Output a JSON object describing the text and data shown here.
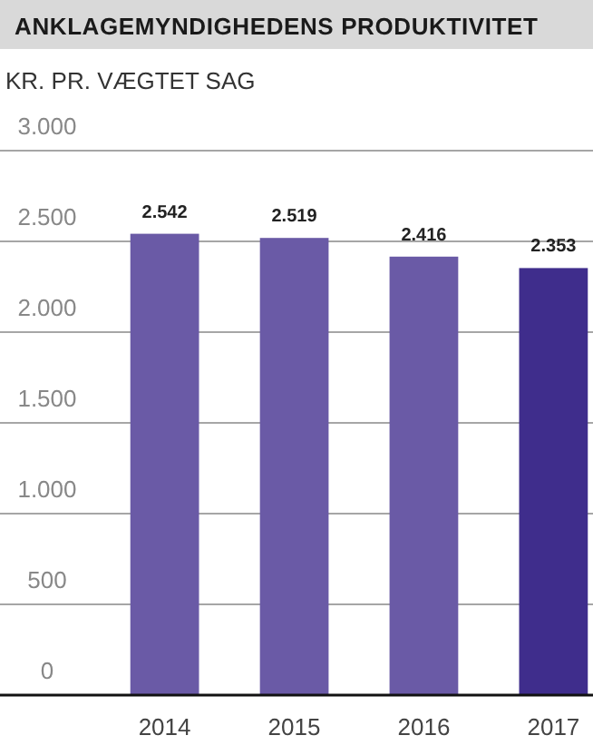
{
  "chart_data": {
    "type": "bar",
    "title": "ANKLAGEMYNDIGHEDENS PRODUKTIVITET",
    "ylabel": "KR. PR. VÆGTET SAG",
    "categories": [
      "2014",
      "2015",
      "2016",
      "2017"
    ],
    "values": [
      2542,
      2519,
      2416,
      2353
    ],
    "value_labels": [
      "2.542",
      "2.519",
      "2.416",
      "2.353"
    ],
    "colors": [
      "#6a5aa6",
      "#6a5aa6",
      "#6a5aa6",
      "#3f2d8c"
    ],
    "ylim": [
      0,
      3000
    ],
    "yticks": [
      {
        "value": 0,
        "label": "0"
      },
      {
        "value": 500,
        "label": "500"
      },
      {
        "value": 1000,
        "label": "1.000"
      },
      {
        "value": 1500,
        "label": "1.500"
      },
      {
        "value": 2000,
        "label": "2.000"
      },
      {
        "value": 2500,
        "label": "2.500"
      },
      {
        "value": 3000,
        "label": "3.000"
      }
    ],
    "grid": "y"
  }
}
